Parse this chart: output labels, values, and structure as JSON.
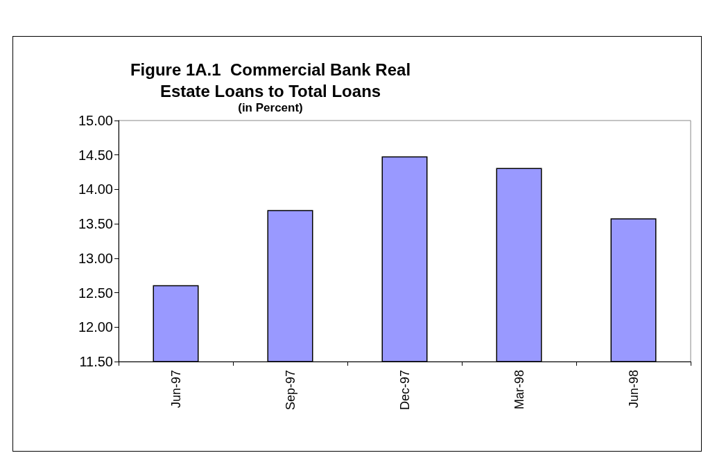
{
  "chart_data": {
    "type": "bar",
    "title": "Figure 1A.1  Commercial Bank Real\nEstate Loans to Total Loans",
    "subtitle": "(in Percent)",
    "categories": [
      "Jun-97",
      "Sep-97",
      "Dec-97",
      "Mar-98",
      "Jun-98"
    ],
    "values": [
      12.61,
      13.7,
      14.48,
      14.31,
      13.58
    ],
    "color": "#9999ff",
    "ylim": [
      11.5,
      15
    ],
    "yticks": [
      {
        "value": 11.5,
        "label": "11.50"
      },
      {
        "value": 12,
        "label": "12.00"
      },
      {
        "value": 12.5,
        "label": "12.50"
      },
      {
        "value": 13,
        "label": "13.00"
      },
      {
        "value": 13.5,
        "label": "13.50"
      },
      {
        "value": 14,
        "label": "14.00"
      },
      {
        "value": 14.5,
        "label": "14.50"
      },
      {
        "value": 15,
        "label": "15.00"
      }
    ],
    "grid": false
  }
}
